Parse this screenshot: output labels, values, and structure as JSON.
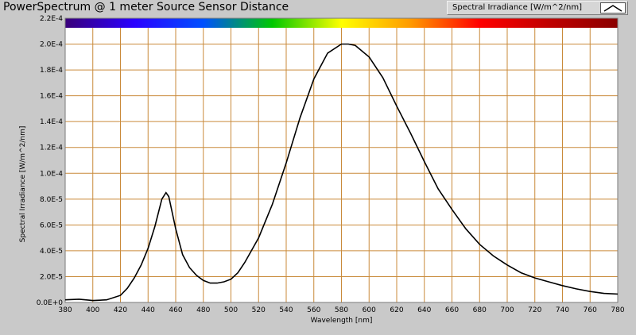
{
  "chart_data": {
    "type": "line",
    "title": "PowerSpectrum @ 1 meter Source Sensor Distance",
    "xlabel": "Wavelength [nm]",
    "ylabel": "Spectral Irradiance [W/m^2/nm]",
    "xlim": [
      380,
      780
    ],
    "ylim": [
      0,
      0.00022
    ],
    "grid": true,
    "legend_position": "top-right",
    "x_ticks": [
      380,
      400,
      420,
      440,
      460,
      480,
      500,
      520,
      540,
      560,
      580,
      600,
      620,
      640,
      660,
      680,
      700,
      720,
      740,
      760,
      780
    ],
    "x_tick_labels": [
      "380",
      "400",
      "420",
      "440",
      "460",
      "480",
      "500",
      "520",
      "540",
      "560",
      "580",
      "600",
      "620",
      "640",
      "660",
      "680",
      "700",
      "720",
      "740",
      "760",
      "780"
    ],
    "y_ticks": [
      0,
      2e-05,
      4e-05,
      6e-05,
      8e-05,
      0.0001,
      0.00012,
      0.00014,
      0.00016,
      0.00018,
      0.0002,
      0.00022
    ],
    "y_tick_labels": [
      "0.0E+0",
      "2.0E-5",
      "4.0E-5",
      "6.0E-5",
      "8.0E-5",
      "1.0E-4",
      "1.2E-4",
      "1.4E-4",
      "1.6E-4",
      "1.8E-4",
      "2.0E-4",
      "2.2E-4"
    ],
    "series": [
      {
        "name": "Spectral Irradiance [W/m^2/nm]",
        "color": "#000000",
        "x": [
          380,
          390,
          400,
          410,
          420,
          425,
          430,
          435,
          440,
          445,
          450,
          453,
          455,
          460,
          465,
          470,
          475,
          480,
          485,
          490,
          495,
          500,
          505,
          510,
          520,
          530,
          540,
          550,
          560,
          570,
          580,
          585,
          590,
          600,
          610,
          620,
          630,
          640,
          650,
          660,
          670,
          680,
          690,
          700,
          710,
          720,
          730,
          740,
          750,
          760,
          770,
          780
        ],
        "y": [
          2e-06,
          2.5e-06,
          1.5e-06,
          2e-06,
          5.5e-06,
          1.1e-05,
          1.9e-05,
          2.9e-05,
          4.2e-05,
          5.9e-05,
          8e-05,
          8.5e-05,
          8.2e-05,
          5.7e-05,
          3.7e-05,
          2.7e-05,
          2.1e-05,
          1.7e-05,
          1.5e-05,
          1.5e-05,
          1.6e-05,
          1.8e-05,
          2.3e-05,
          3.1e-05,
          5e-05,
          7.6e-05,
          0.000108,
          0.000143,
          0.000173,
          0.000193,
          0.0002,
          0.0002,
          0.000199,
          0.00019,
          0.000174,
          0.000152,
          0.000131,
          0.000109,
          8.8e-05,
          7.2e-05,
          5.7e-05,
          4.5e-05,
          3.6e-05,
          2.9e-05,
          2.3e-05,
          1.9e-05,
          1.6e-05,
          1.3e-05,
          1.05e-05,
          8.5e-06,
          7e-06,
          6.5e-06
        ]
      }
    ]
  },
  "spectrum_bar_colors": [
    "#3a007a",
    "#2a00ff",
    "#0050ff",
    "#00c800",
    "#ffff00",
    "#ff9a00",
    "#ff0000",
    "#c00000",
    "#8a0000"
  ]
}
